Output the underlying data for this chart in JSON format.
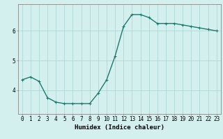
{
  "x": [
    0,
    1,
    2,
    3,
    4,
    5,
    6,
    7,
    8,
    9,
    10,
    11,
    12,
    13,
    14,
    15,
    16,
    17,
    18,
    19,
    20,
    21,
    22,
    23
  ],
  "y": [
    4.35,
    4.45,
    4.3,
    3.75,
    3.6,
    3.55,
    3.55,
    3.55,
    3.55,
    3.9,
    4.35,
    5.15,
    6.15,
    6.55,
    6.55,
    6.45,
    6.25,
    6.25,
    6.25,
    6.2,
    6.15,
    6.1,
    6.05,
    6.0
  ],
  "line_color": "#1a7a6e",
  "marker": "+",
  "marker_size": 3,
  "bg_color": "#d4f0ee",
  "grid_color": "#b0d8d4",
  "axis_color": "#888888",
  "xlabel": "Humidex (Indice chaleur)",
  "xlabel_fontsize": 6.5,
  "ylabel_ticks": [
    4,
    5,
    6
  ],
  "xticks": [
    0,
    1,
    2,
    3,
    4,
    5,
    6,
    7,
    8,
    9,
    10,
    11,
    12,
    13,
    14,
    15,
    16,
    17,
    18,
    19,
    20,
    21,
    22,
    23
  ],
  "ylim": [
    3.2,
    6.9
  ],
  "xlim": [
    -0.5,
    23.5
  ],
  "tick_fontsize": 5.5,
  "linewidth": 1.0
}
